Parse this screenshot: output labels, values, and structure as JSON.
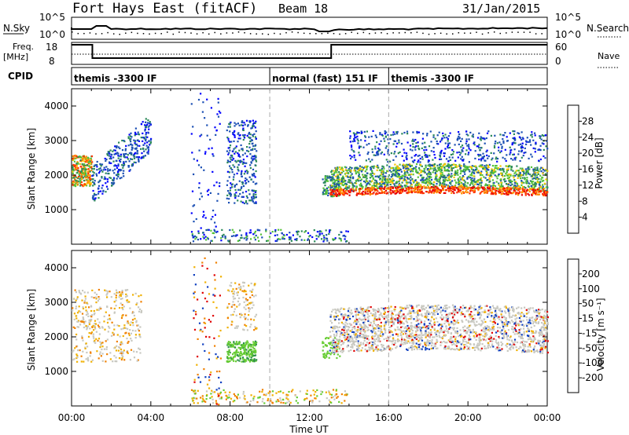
{
  "header": {
    "station": "Fort Hays East (fitACF)",
    "beam": "Beam 18",
    "date": "31/Jan/2015"
  },
  "top_panels": {
    "nsky_label": "N.Sky",
    "nsky_ticks": [
      "10^5",
      "10^0"
    ],
    "nsearch_label": "N.Search",
    "nsearch_ticks": [
      "10^5",
      "10^0"
    ],
    "freq_label_1": "Freq.",
    "freq_label_2": "[MHz]",
    "freq_ticks": [
      "18",
      "8"
    ],
    "nave_label": "Nave",
    "nave_ticks": [
      "60",
      "0"
    ],
    "cpid_label": "CPID",
    "cpid_segments": [
      {
        "label": "themis -3300 IF",
        "start_hr": 0.0,
        "end_hr": 10.0
      },
      {
        "label": "normal (fast) 151 IF",
        "start_hr": 10.0,
        "end_hr": 16.0
      },
      {
        "label": "themis -3300 IF",
        "start_hr": 16.0,
        "end_hr": 24.0
      }
    ]
  },
  "axes": {
    "ylabel": "Slant Range [km]",
    "xlabel": "Time UT",
    "xticks": [
      "00:00",
      "04:00",
      "08:00",
      "12:00",
      "16:00",
      "20:00",
      "00:00"
    ],
    "yticks": [
      "1000",
      "2000",
      "3000",
      "4000"
    ]
  },
  "power_scale": {
    "label": "Power [dB]",
    "ticks": [
      "4",
      "8",
      "12",
      "16",
      "20",
      "24",
      "28"
    ],
    "colors": [
      "#0000ff",
      "#1c50b4",
      "#2c8a5a",
      "#55c239",
      "#f4c400",
      "#ff8c00",
      "#ff3500",
      "#e80000"
    ]
  },
  "velocity_scale": {
    "label": "Velocity [m s⁻¹]",
    "ticks": [
      "200",
      "100",
      "50",
      "15",
      "-15",
      "-50",
      "-100",
      "-200"
    ],
    "colors": [
      "#1040c0",
      "#2f72a8",
      "#2d8f4a",
      "#66cc33",
      "#c8c8c0",
      "#f0b000",
      "#f08000",
      "#ff4000",
      "#e00000"
    ]
  },
  "chart_data": [
    {
      "type": "heatmap",
      "title": "Power",
      "xlabel": "Time UT",
      "ylabel": "Slant Range [km]",
      "x_range_hours": [
        0,
        24
      ],
      "y_range_km": [
        0,
        4500
      ],
      "colorbar": {
        "label": "Power [dB]",
        "range": [
          0,
          32
        ]
      },
      "regions": [
        {
          "t": [
            0.0,
            1.0
          ],
          "r": [
            1600,
            2700
          ],
          "value_db": 22
        },
        {
          "t": [
            1.0,
            4.0
          ],
          "r": [
            1100,
            3600
          ],
          "value_db": 8
        },
        {
          "t": [
            7.8,
            9.3
          ],
          "r": [
            1200,
            3700
          ],
          "value_db": 8
        },
        {
          "t": [
            12.7,
            24.0
          ],
          "r": [
            1100,
            2700
          ],
          "value_db": 18
        },
        {
          "t": [
            14.5,
            24.0
          ],
          "r": [
            2500,
            3500
          ],
          "value_db": 6
        }
      ]
    },
    {
      "type": "heatmap",
      "title": "Velocity",
      "xlabel": "Time UT",
      "ylabel": "Slant Range [km]",
      "x_range_hours": [
        0,
        24
      ],
      "y_range_km": [
        0,
        4500
      ],
      "colorbar": {
        "label": "Velocity [m s⁻¹]",
        "range": [
          -200,
          200
        ]
      },
      "regions": [
        {
          "t": [
            0.0,
            3.5
          ],
          "r": [
            1300,
            3400
          ],
          "value_ms": 0
        },
        {
          "t": [
            7.8,
            9.3
          ],
          "r": [
            1200,
            1900
          ],
          "value_ms": 40
        },
        {
          "t": [
            12.7,
            24.0
          ],
          "r": [
            1100,
            2700
          ],
          "value_ms": 0
        }
      ]
    }
  ]
}
